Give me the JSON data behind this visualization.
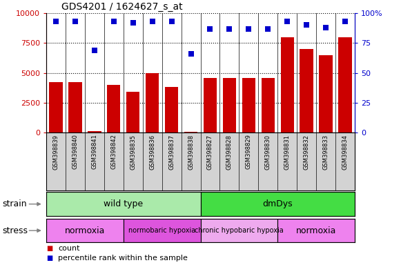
{
  "title": "GDS4201 / 1624627_s_at",
  "samples": [
    "GSM398839",
    "GSM398840",
    "GSM398841",
    "GSM398842",
    "GSM398835",
    "GSM398836",
    "GSM398837",
    "GSM398838",
    "GSM398827",
    "GSM398828",
    "GSM398829",
    "GSM398830",
    "GSM398831",
    "GSM398832",
    "GSM398833",
    "GSM398834"
  ],
  "counts": [
    4200,
    4200,
    100,
    4000,
    3400,
    5000,
    3800,
    50,
    4600,
    4600,
    4600,
    4600,
    8000,
    7000,
    6500,
    8000
  ],
  "percentile": [
    93,
    93,
    69,
    93,
    92,
    93,
    93,
    66,
    87,
    87,
    87,
    87,
    93,
    90,
    88,
    93
  ],
  "bar_color": "#cc0000",
  "dot_color": "#0000cc",
  "ylim_left": [
    0,
    10000
  ],
  "ylim_right": [
    0,
    100
  ],
  "yticks_left": [
    0,
    2500,
    5000,
    7500,
    10000
  ],
  "ytick_labels_left": [
    "0",
    "2500",
    "5000",
    "7500",
    "10000"
  ],
  "yticks_right": [
    0,
    25,
    50,
    75,
    100
  ],
  "ytick_labels_right": [
    "0",
    "25",
    "50",
    "75",
    "100%"
  ],
  "strain_groups": [
    {
      "label": "wild type",
      "start": 0,
      "end": 8,
      "color": "#aaeaaa"
    },
    {
      "label": "dmDys",
      "start": 8,
      "end": 16,
      "color": "#44dd44"
    }
  ],
  "stress_groups": [
    {
      "label": "normoxia",
      "start": 0,
      "end": 4,
      "color": "#ee82ee"
    },
    {
      "label": "normobaric hypoxia",
      "start": 4,
      "end": 8,
      "color": "#dd55dd"
    },
    {
      "label": "chronic hypobaric hypoxia",
      "start": 8,
      "end": 12,
      "color": "#eeaaee"
    },
    {
      "label": "normoxia",
      "start": 12,
      "end": 16,
      "color": "#ee82ee"
    }
  ],
  "legend_count_label": "count",
  "legend_pct_label": "percentile rank within the sample",
  "strain_label": "strain",
  "stress_label": "stress",
  "tick_bg_color": "#d3d3d3",
  "bar_width": 0.7
}
